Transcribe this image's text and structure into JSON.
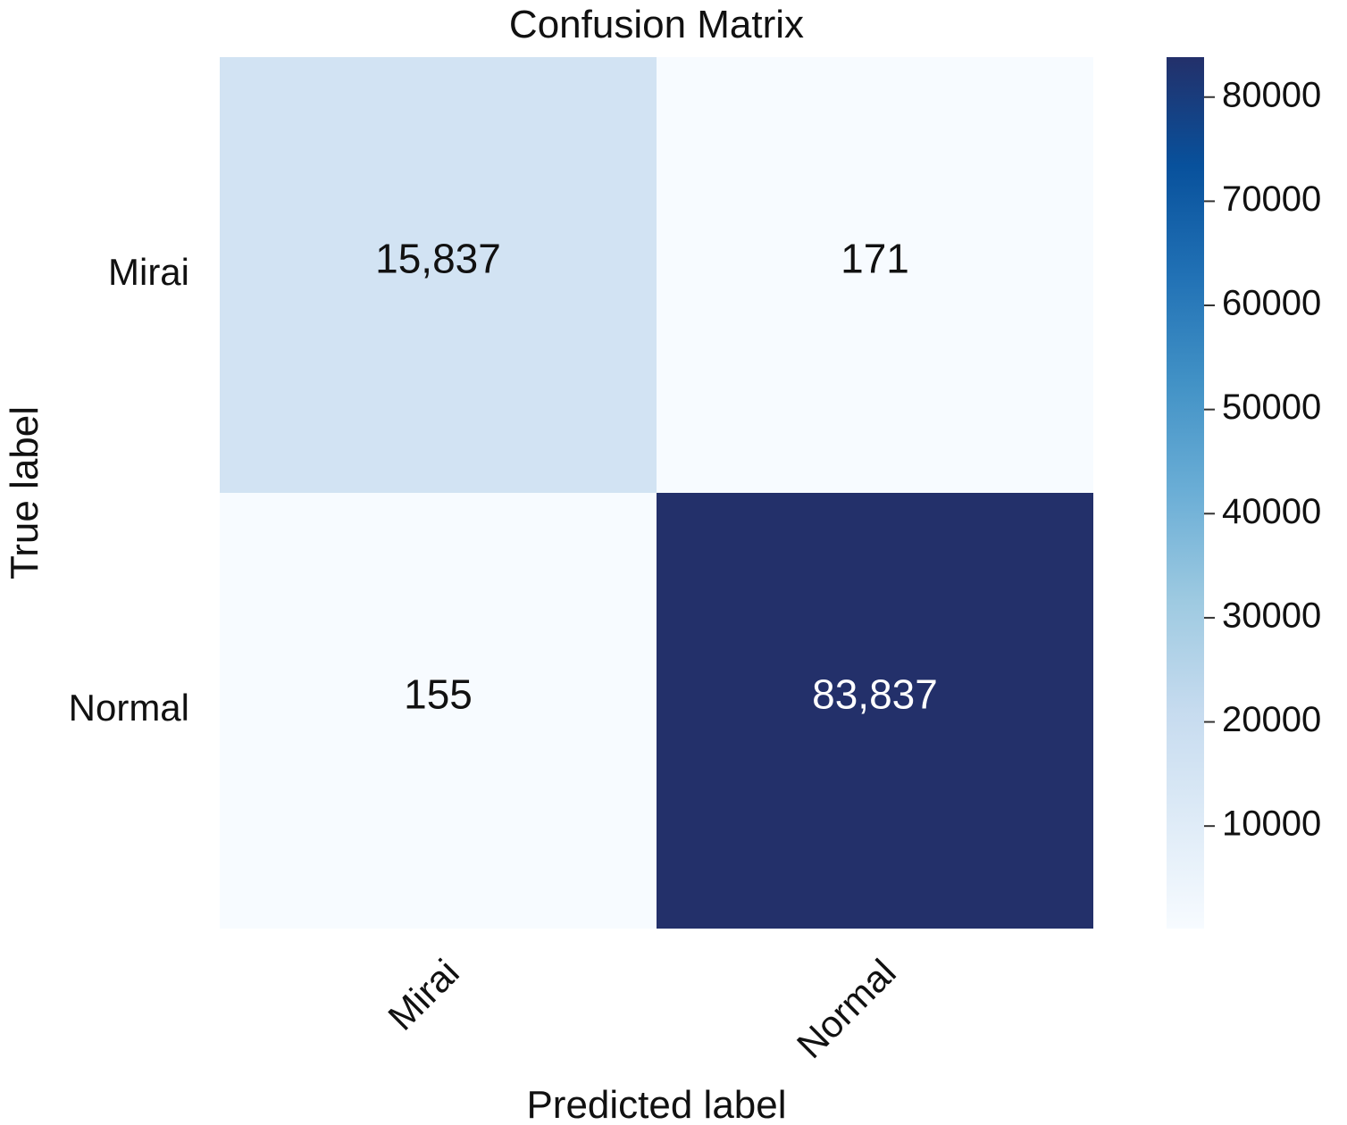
{
  "chart_data": {
    "type": "heatmap",
    "title": "Confusion Matrix",
    "xlabel": "Predicted label",
    "ylabel": "True label",
    "x_categories": [
      "Mirai",
      "Normal"
    ],
    "y_categories": [
      "Mirai",
      "Normal"
    ],
    "values": [
      [
        15837,
        171
      ],
      [
        155,
        83837
      ]
    ],
    "annotations": [
      [
        "15,837",
        "171"
      ],
      [
        "155",
        "83,837"
      ]
    ],
    "colormap": "Blues",
    "colorbar": {
      "range": [
        155,
        83837
      ],
      "ticks": [
        10000,
        20000,
        30000,
        40000,
        50000,
        60000,
        70000,
        80000
      ],
      "tick_labels": [
        "10000",
        "20000",
        "30000",
        "40000",
        "50000",
        "60000",
        "70000",
        "80000"
      ]
    },
    "grid": false
  }
}
